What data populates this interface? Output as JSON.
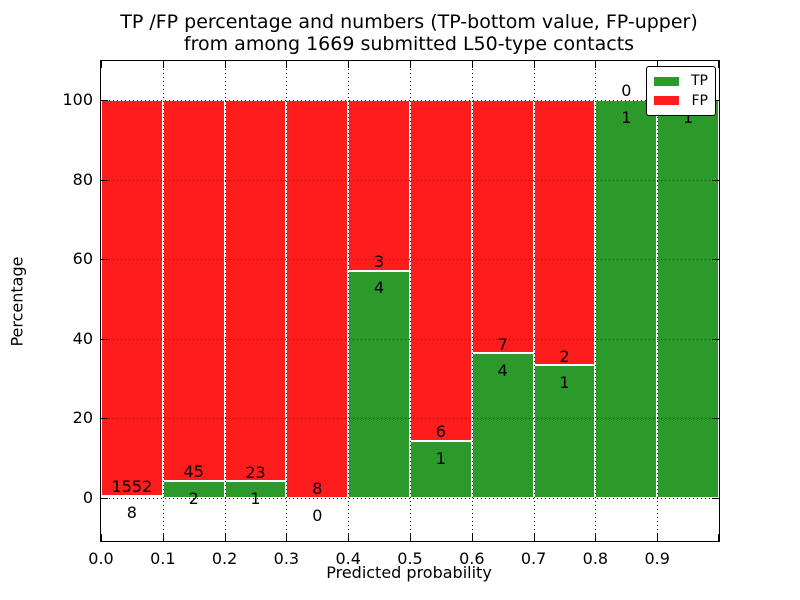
{
  "title": {
    "line1": "TP /FP percentage and numbers (TP-bottom value, FP-upper)",
    "line2": "from among 1669 submitted L50-type contacts"
  },
  "axes": {
    "xlabel": "Predicted probability",
    "ylabel": "Percentage",
    "x_tick_labels": [
      "0.0",
      "0.1",
      "0.2",
      "0.3",
      "0.4",
      "0.5",
      "0.6",
      "0.7",
      "0.8",
      "0.9"
    ],
    "y_tick_labels": [
      "0",
      "20",
      "40",
      "60",
      "80",
      "100"
    ],
    "y_tick_values": [
      0,
      20,
      40,
      60,
      80,
      100
    ]
  },
  "legend": {
    "items": [
      {
        "label": "TP",
        "color": "#2b9a2b"
      },
      {
        "label": "FP",
        "color": "#ff1c1c"
      }
    ]
  },
  "colors": {
    "tp": "#2b9a2b",
    "fp": "#ff1c1c",
    "grid": "#000000",
    "frame": "#000000",
    "background": "#ffffff"
  },
  "chart_data": {
    "type": "bar",
    "stacked": true,
    "normalized_to_percent": true,
    "title": "TP /FP percentage and numbers (TP-bottom value, FP-upper) from among 1669 submitted L50-type contacts",
    "xlabel": "Predicted probability",
    "ylabel": "Percentage",
    "xlim": [
      0.0,
      1.0
    ],
    "ylim": [
      -10.8,
      109.8
    ],
    "grid": true,
    "legend_position": "upper right",
    "total_contacts": 1669,
    "categories": [
      "0.0-0.1",
      "0.1-0.2",
      "0.2-0.3",
      "0.3-0.4",
      "0.4-0.5",
      "0.5-0.6",
      "0.6-0.7",
      "0.7-0.8",
      "0.8-0.9",
      "0.9-1.0"
    ],
    "series": [
      {
        "name": "TP",
        "counts": [
          8,
          2,
          1,
          0,
          4,
          1,
          4,
          1,
          1,
          1
        ]
      },
      {
        "name": "FP",
        "counts": [
          1552,
          45,
          23,
          8,
          3,
          6,
          7,
          2,
          0,
          0
        ]
      }
    ],
    "tp_percent": [
      0.51,
      4.26,
      4.17,
      0.0,
      57.14,
      14.29,
      36.36,
      33.33,
      100.0,
      100.0
    ]
  }
}
